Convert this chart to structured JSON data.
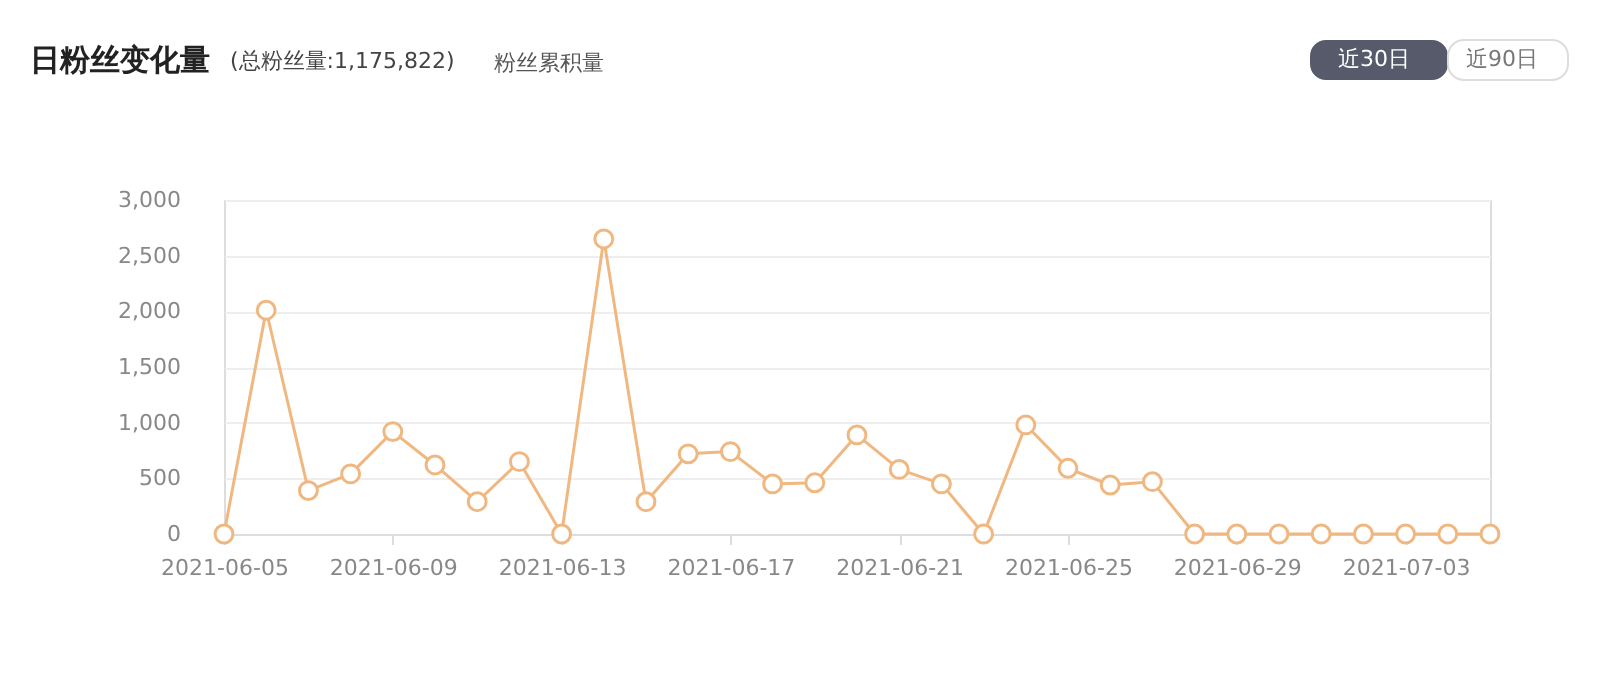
{
  "chart_data": {
    "type": "line",
    "title": "日粉丝变化量",
    "subtitle": "(总粉丝量:1,175,822)",
    "annotations": [
      "粉丝累积量",
      "近30日",
      "近90日"
    ],
    "x": [
      "2021-06-05",
      "2021-06-06",
      "2021-06-07",
      "2021-06-08",
      "2021-06-09",
      "2021-06-10",
      "2021-06-11",
      "2021-06-12",
      "2021-06-13",
      "2021-06-14",
      "2021-06-15",
      "2021-06-16",
      "2021-06-17",
      "2021-06-18",
      "2021-06-19",
      "2021-06-20",
      "2021-06-21",
      "2021-06-22",
      "2021-06-23",
      "2021-06-24",
      "2021-06-25",
      "2021-06-26",
      "2021-06-27",
      "2021-06-28",
      "2021-06-29",
      "2021-06-30",
      "2021-07-01",
      "2021-07-02",
      "2021-07-03",
      "2021-07-04",
      "2021-07-05"
    ],
    "series": [
      {
        "color": "#f0b880",
        "values": [
          0,
          2010,
          390,
          540,
          920,
          620,
          290,
          650,
          0,
          2650,
          290,
          720,
          740,
          450,
          460,
          890,
          580,
          450,
          0,
          980,
          590,
          440,
          470,
          0,
          0,
          0,
          0,
          0,
          0,
          0,
          0
        ]
      }
    ],
    "xlim": [
      "2021-06-05",
      "2021-07-05"
    ],
    "xticks": [
      "2021-06-05",
      "2021-06-09",
      "2021-06-13",
      "2021-06-17",
      "2021-06-21",
      "2021-06-25",
      "2021-06-29",
      "2021-07-03"
    ],
    "ylim": [
      0,
      3000
    ],
    "yticks": [
      {
        "value": 0,
        "label": "0"
      },
      {
        "value": 500,
        "label": "500"
      },
      {
        "value": 1000,
        "label": "1,000"
      },
      {
        "value": 1500,
        "label": "1,500"
      },
      {
        "value": 2000,
        "label": "2,000"
      },
      {
        "value": 2500,
        "label": "2,500"
      },
      {
        "value": 3000,
        "label": "3,000"
      }
    ],
    "grid": "y",
    "marker": "circle",
    "line_style": "solid"
  }
}
